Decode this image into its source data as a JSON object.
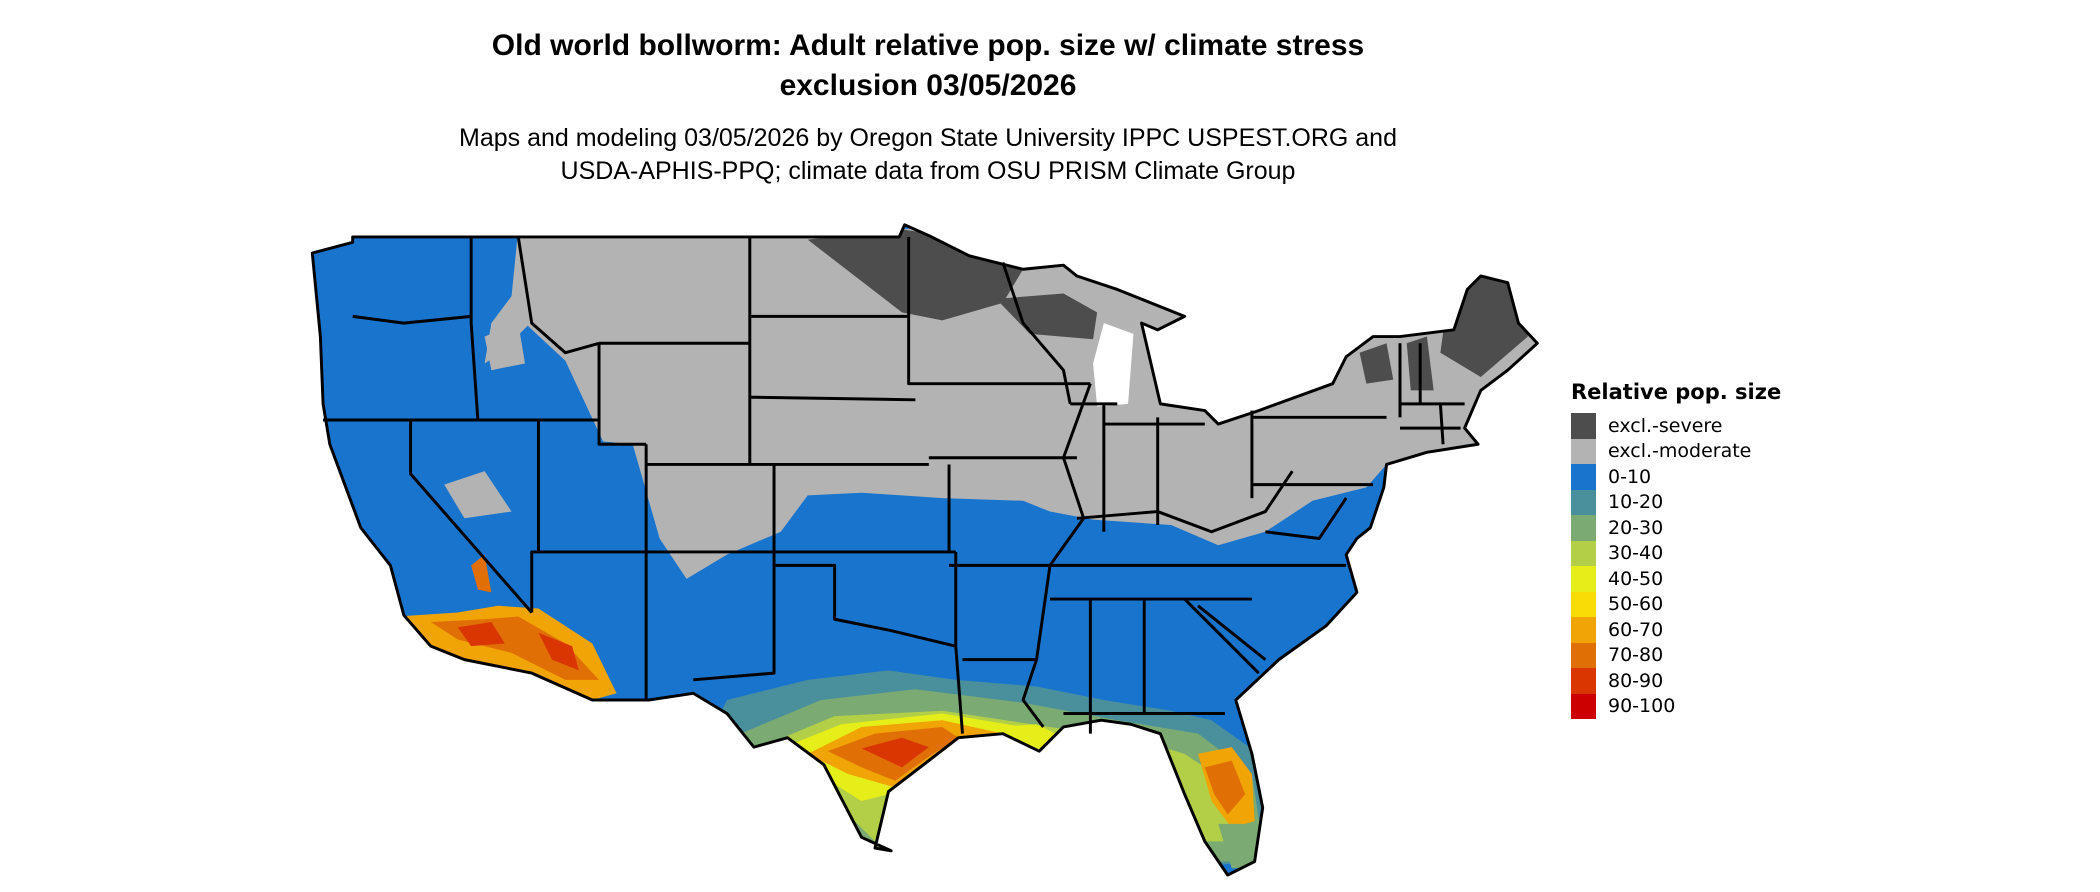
{
  "title": {
    "line1": "Old world bollworm: Adult relative pop. size w/ climate stress",
    "line2": "exclusion 03/05/2026"
  },
  "subtitle": {
    "line1": "Maps and modeling 03/05/2026 by Oregon State University IPPC USPEST.ORG and",
    "line2": "USDA-APHIS-PPQ; climate data from OSU PRISM Climate Group"
  },
  "legend": {
    "title": "Relative pop. size",
    "items": [
      {
        "label": "excl.-severe",
        "color": "#4d4d4d"
      },
      {
        "label": "excl.-moderate",
        "color": "#b3b3b3"
      },
      {
        "label": "0-10",
        "color": "#1874cd"
      },
      {
        "label": "10-20",
        "color": "#4a8f9c"
      },
      {
        "label": "20-30",
        "color": "#7bab72"
      },
      {
        "label": "30-40",
        "color": "#b3cf48"
      },
      {
        "label": "40-50",
        "color": "#e5ee18"
      },
      {
        "label": "50-60",
        "color": "#f7dc06"
      },
      {
        "label": "60-70",
        "color": "#f0a406"
      },
      {
        "label": "70-80",
        "color": "#e07005"
      },
      {
        "label": "80-90",
        "color": "#d93602"
      },
      {
        "label": "90-100",
        "color": "#cc0000"
      }
    ]
  },
  "map": {
    "region": "Contiguous United States",
    "pattern": {
      "excl.-severe": [
        "northern Minnesota",
        "Upper Michigan",
        "northern Maine",
        "northern New England mountains"
      ],
      "excl.-moderate": [
        "northern plains",
        "Midwest",
        "Great Lakes",
        "Northeast",
        "mountain areas of the West"
      ],
      "0-10": [
        "Pacific Northwest",
        "Great Basin",
        "Southwest",
        "Southern Plains",
        "Southeast"
      ],
      "high (60-100)": [
        "Gulf Coast of Texas and Louisiana",
        "central Florida",
        "southern Arizona",
        "southern California deserts"
      ]
    }
  }
}
